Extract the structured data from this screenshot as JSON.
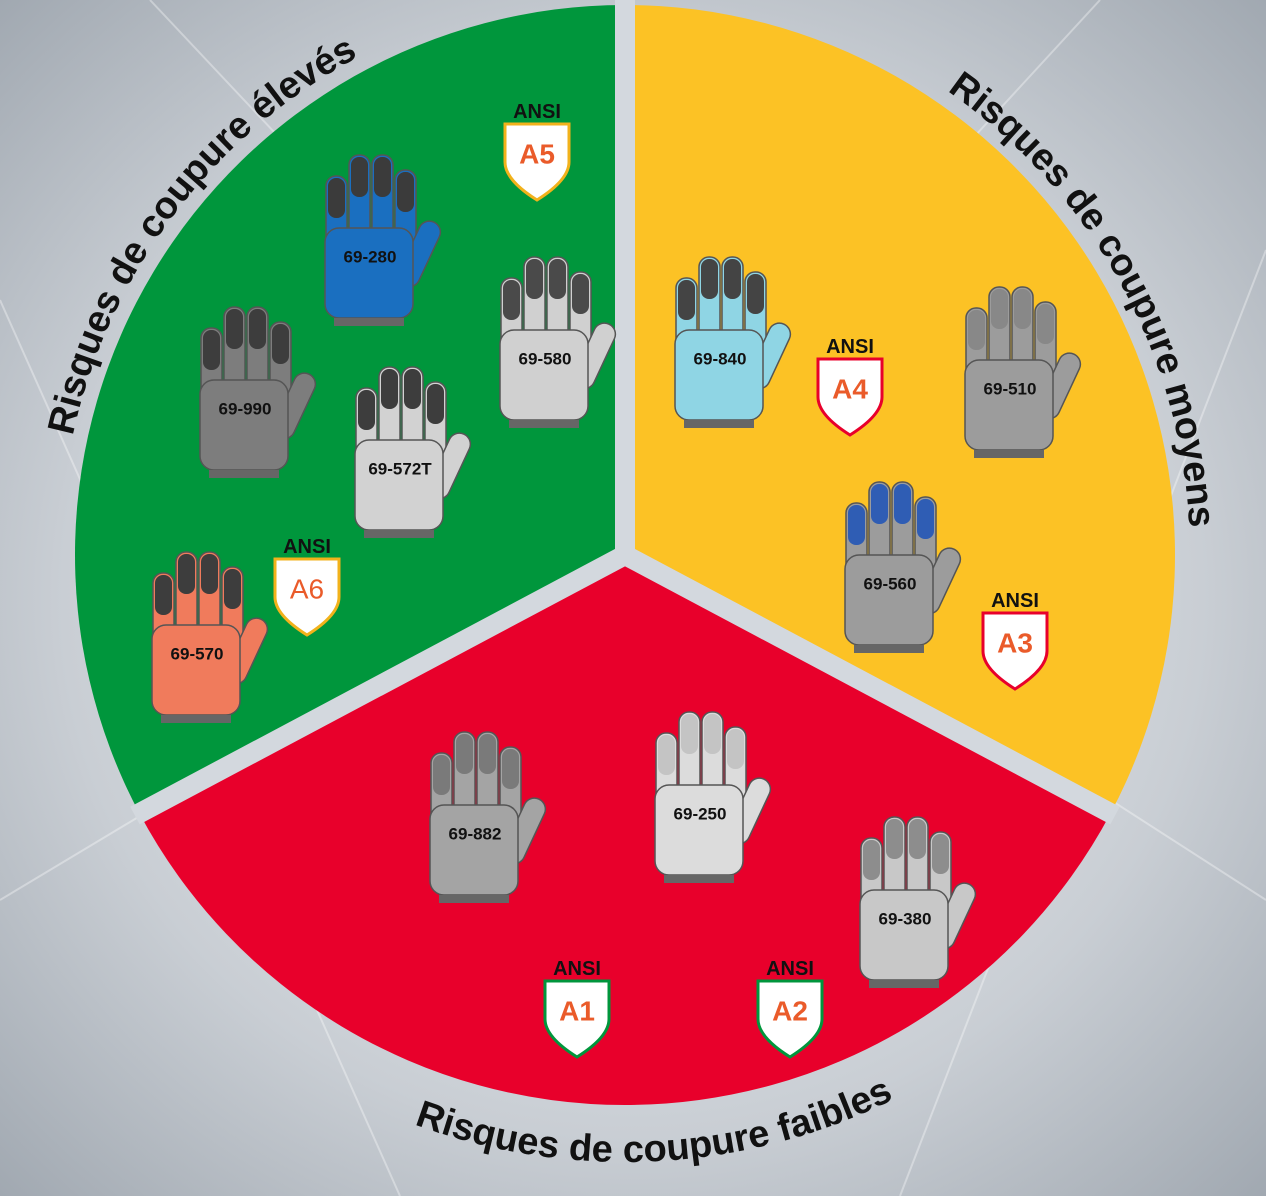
{
  "sections": [
    {
      "title": "Risques de coupure élevés",
      "gloves": [
        "69-280",
        "69-990",
        "69-572T",
        "69-580",
        "69-570"
      ],
      "badges": [
        {
          "standard": "ANSI",
          "level": "A5"
        },
        {
          "standard": "ANSI",
          "level": "A6"
        }
      ]
    },
    {
      "title": "Risques de coupure moyens",
      "gloves": [
        "69-840",
        "69-510",
        "69-560"
      ],
      "badges": [
        {
          "standard": "ANSI",
          "level": "A4"
        },
        {
          "standard": "ANSI",
          "level": "A3"
        }
      ]
    },
    {
      "title": "Risques de coupure faibles",
      "gloves": [
        "69-882",
        "69-250",
        "69-380"
      ],
      "badges": [
        {
          "standard": "ANSI",
          "level": "A1"
        },
        {
          "standard": "ANSI",
          "level": "A2"
        }
      ]
    }
  ]
}
